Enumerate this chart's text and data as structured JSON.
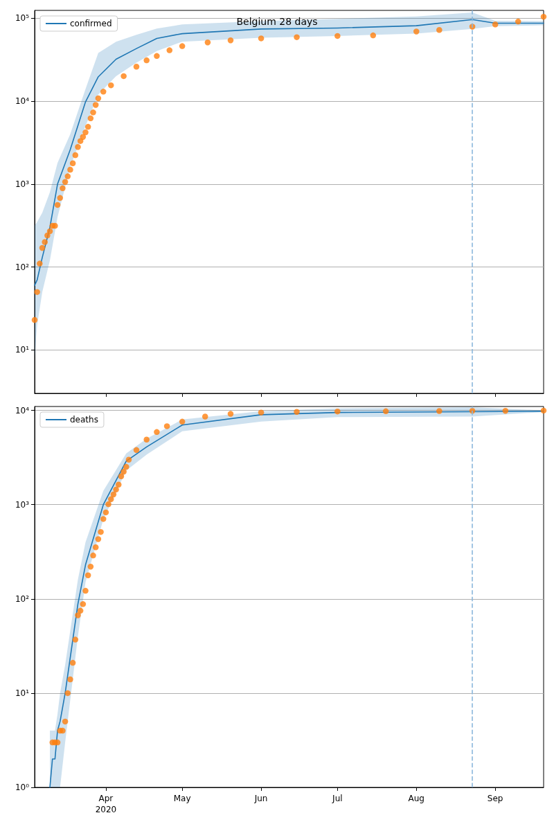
{
  "chart_data": [
    {
      "type": "line",
      "title": "Belgium 28 days",
      "log": "y",
      "grid": "y",
      "legend": "top left",
      "tick_labels": "y",
      "xlim": [
        "2020-03-04",
        "2020-09-20"
      ],
      "xticks": [
        {
          "value": "2020-04-01",
          "label": null
        },
        {
          "value": "2020-05-01",
          "label": null
        },
        {
          "value": "2020-06-01",
          "label": null
        },
        {
          "value": "2020-07-01",
          "label": null
        },
        {
          "value": "2020-08-01",
          "label": null
        },
        {
          "value": "2020-09-01",
          "label": null
        }
      ],
      "ylim": [
        3,
        124000
      ],
      "yticks": [
        {
          "value": 10,
          "label": "10¹"
        },
        {
          "value": 100,
          "label": "10²"
        },
        {
          "value": 1000,
          "label": "10³"
        },
        {
          "value": 10000,
          "label": "10⁴"
        },
        {
          "value": 100000,
          "label": "10⁵"
        }
      ],
      "ref_lines": [
        {
          "axis": "x",
          "value": "2020-08-23",
          "label": null,
          "color": "#8ab7dc",
          "line_style": "dashed"
        }
      ],
      "series": [
        {
          "name": "confirmed",
          "marker": "none",
          "color": "#1f77b4",
          "x": [
            "2020-03-04",
            "2020-03-05",
            "2020-03-07",
            "2020-03-10",
            "2020-03-13",
            "2020-03-18",
            "2020-03-24",
            "2020-03-29",
            "2020-04-05",
            "2020-04-13",
            "2020-04-21",
            "2020-05-01",
            "2020-06-01",
            "2020-07-01",
            "2020-08-01",
            "2020-08-23",
            "2020-09-01",
            "2020-09-20"
          ],
          "values": [
            60,
            70,
            130,
            300,
            1000,
            2600,
            9800,
            19600,
            32000,
            43000,
            57000,
            65000,
            74000,
            76000,
            81000,
            96000,
            87000,
            87000
          ],
          "lower": [
            8,
            20,
            50,
            120,
            400,
            1600,
            5000,
            12000,
            20000,
            29000,
            40000,
            52000,
            58000,
            61000,
            65000,
            74000,
            80000,
            82000
          ],
          "upper": [
            316,
            350,
            450,
            800,
            1800,
            4000,
            14000,
            38000,
            52000,
            63000,
            75000,
            84000,
            92000,
            98000,
            105000,
            117000,
            93000,
            92000
          ]
        },
        {
          "type": "scatter",
          "marker": "circle",
          "color": "#ff7f0e",
          "x": [
            "2020-03-04",
            "2020-03-05",
            "2020-03-06",
            "2020-03-07",
            "2020-03-08",
            "2020-03-09",
            "2020-03-10",
            "2020-03-11",
            "2020-03-12",
            "2020-03-13",
            "2020-03-14",
            "2020-03-15",
            "2020-03-16",
            "2020-03-17",
            "2020-03-18",
            "2020-03-19",
            "2020-03-20",
            "2020-03-21",
            "2020-03-22",
            "2020-03-23",
            "2020-03-24",
            "2020-03-25",
            "2020-03-26",
            "2020-03-27",
            "2020-03-28",
            "2020-03-29",
            "2020-03-31",
            "2020-04-03",
            "2020-04-08",
            "2020-04-13",
            "2020-04-17",
            "2020-04-21",
            "2020-04-26",
            "2020-05-01",
            "2020-05-11",
            "2020-05-20",
            "2020-06-01",
            "2020-06-15",
            "2020-07-01",
            "2020-07-15",
            "2020-08-01",
            "2020-08-10",
            "2020-08-23",
            "2020-09-01",
            "2020-09-10",
            "2020-09-20"
          ],
          "values": [
            23,
            50,
            110,
            170,
            200,
            240,
            270,
            314,
            314,
            560,
            680,
            890,
            1060,
            1240,
            1490,
            1780,
            2230,
            2800,
            3300,
            3700,
            4200,
            4900,
            6200,
            7300,
            9000,
            10800,
            13000,
            15500,
            20000,
            26000,
            31000,
            35000,
            41000,
            46000,
            51000,
            54000,
            57000,
            59000,
            61000,
            62000,
            69000,
            72000,
            79000,
            84000,
            91000,
            104000
          ]
        }
      ]
    },
    {
      "type": "line",
      "log": "y",
      "grid": "y",
      "legend": "top left",
      "xlim": [
        "2020-03-04",
        "2020-09-20"
      ],
      "xticks": [
        {
          "value": "2020-04-01",
          "label": "Apr\n2020"
        },
        {
          "value": "2020-05-01",
          "label": "May"
        },
        {
          "value": "2020-06-01",
          "label": "Jun"
        },
        {
          "value": "2020-07-01",
          "label": "Jul"
        },
        {
          "value": "2020-08-01",
          "label": "Aug"
        },
        {
          "value": "2020-09-01",
          "label": "Sep"
        }
      ],
      "ylim": [
        1,
        11000
      ],
      "yticks": [
        {
          "value": 1,
          "label": "10⁰"
        },
        {
          "value": 10,
          "label": "10¹"
        },
        {
          "value": 100,
          "label": "10²"
        },
        {
          "value": 1000,
          "label": "10³"
        },
        {
          "value": 10000,
          "label": "10⁴"
        }
      ],
      "ref_lines": [
        {
          "axis": "x",
          "value": "2020-08-23",
          "label": null,
          "color": "#8ab7dc",
          "line_style": "dashed"
        }
      ],
      "series": [
        {
          "name": "deaths",
          "marker": "none",
          "color": "#1f77b4",
          "x": [
            "2020-03-10",
            "2020-03-11",
            "2020-03-12",
            "2020-03-13",
            "2020-03-14",
            "2020-03-16",
            "2020-03-21",
            "2020-03-24",
            "2020-03-31",
            "2020-04-09",
            "2020-04-17",
            "2020-05-01",
            "2020-06-01",
            "2020-07-01",
            "2020-08-23",
            "2020-09-20"
          ],
          "values": [
            1,
            2,
            2,
            4,
            5,
            10,
            88,
            230,
            1000,
            2900,
            4100,
            7000,
            9000,
            9500,
            9700,
            9800
          ],
          "lower": [
            1,
            1,
            1,
            1,
            1,
            3,
            40,
            150,
            700,
            2300,
            3400,
            6000,
            7600,
            8500,
            8600,
            9600
          ],
          "upper": [
            4,
            4,
            4,
            6,
            10,
            20,
            160,
            400,
            1400,
            3500,
            5000,
            8000,
            9800,
            10500,
            10800,
            10000
          ]
        },
        {
          "type": "scatter",
          "marker": "circle",
          "color": "#ff7f0e",
          "x": [
            "2020-03-11",
            "2020-03-12",
            "2020-03-13",
            "2020-03-14",
            "2020-03-15",
            "2020-03-16",
            "2020-03-17",
            "2020-03-18",
            "2020-03-19",
            "2020-03-20",
            "2020-03-21",
            "2020-03-22",
            "2020-03-23",
            "2020-03-24",
            "2020-03-25",
            "2020-03-26",
            "2020-03-27",
            "2020-03-28",
            "2020-03-29",
            "2020-03-30",
            "2020-03-31",
            "2020-04-01",
            "2020-04-02",
            "2020-04-03",
            "2020-04-04",
            "2020-04-05",
            "2020-04-06",
            "2020-04-07",
            "2020-04-08",
            "2020-04-09",
            "2020-04-10",
            "2020-04-13",
            "2020-04-17",
            "2020-04-21",
            "2020-04-25",
            "2020-05-01",
            "2020-05-10",
            "2020-05-20",
            "2020-06-01",
            "2020-06-15",
            "2020-07-01",
            "2020-07-20",
            "2020-08-10",
            "2020-08-23",
            "2020-09-05",
            "2020-09-20"
          ],
          "values": [
            3,
            3,
            3,
            4,
            4,
            5,
            10,
            14,
            21,
            37,
            67,
            75,
            88,
            122,
            178,
            220,
            289,
            353,
            431,
            513,
            705,
            828,
            1011,
            1143,
            1283,
            1447,
            1632,
            2000,
            2240,
            2520,
            3000,
            3800,
            4900,
            5900,
            6800,
            7600,
            8600,
            9200,
            9500,
            9650,
            9750,
            9800,
            9850,
            9900,
            9900,
            9950
          ]
        }
      ]
    }
  ]
}
